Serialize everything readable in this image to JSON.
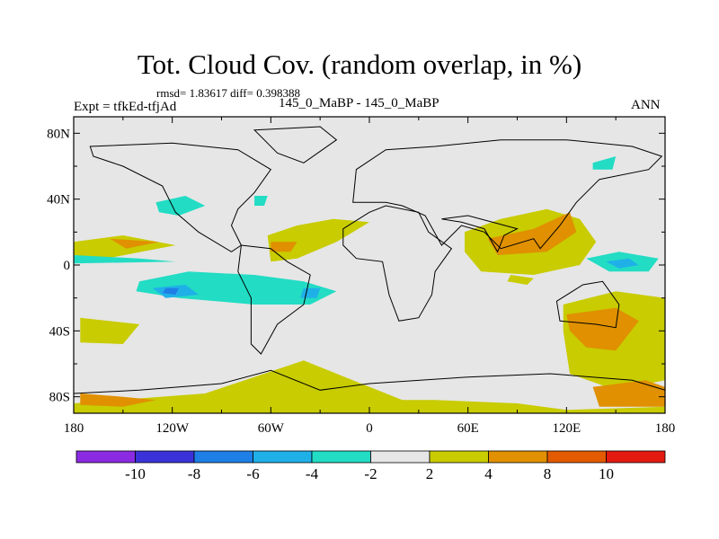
{
  "header": {
    "title": "Tot. Cloud Cov. (random overlap, in %)",
    "stats": "rmsd= 1.83617 diff= 0.398388",
    "expt": "Expt = tfkEd-tfjAd",
    "center_label": "145_0_MaBP - 145_0_MaBP",
    "season": "ANN"
  },
  "chart_data": {
    "type": "heatmap",
    "title": "Tot. Cloud Cov. (random overlap, in %)",
    "xlim": [
      -180,
      180
    ],
    "ylim": [
      -90,
      90
    ],
    "x_ticks": [
      {
        "value": -180,
        "label": "180"
      },
      {
        "value": -120,
        "label": "120W"
      },
      {
        "value": -60,
        "label": "60W"
      },
      {
        "value": 0,
        "label": "0"
      },
      {
        "value": 60,
        "label": "60E"
      },
      {
        "value": 120,
        "label": "120E"
      },
      {
        "value": 180,
        "label": "180"
      }
    ],
    "y_ticks": [
      {
        "value": 80,
        "label": "80N"
      },
      {
        "value": 40,
        "label": "40N"
      },
      {
        "value": 0,
        "label": "0"
      },
      {
        "value": -40,
        "label": "40S"
      },
      {
        "value": -80,
        "label": "80S"
      }
    ],
    "colorbar": {
      "colors": [
        "#8a2be2",
        "#3a32d8",
        "#1e7fe6",
        "#1fb0e8",
        "#22dcc4",
        "#e6e6e6",
        "#c8cc00",
        "#e09000",
        "#e45a00",
        "#e21a10"
      ],
      "labels": [
        "-10",
        "-8",
        "-6",
        "-4",
        "-2",
        "2",
        "4",
        "8",
        "10"
      ]
    },
    "regions": [
      {
        "level": 2,
        "color": "#c8cc00",
        "pts": [
          [
            -180,
            -84
          ],
          [
            -100,
            -78
          ],
          [
            -40,
            -58
          ],
          [
            20,
            -82
          ],
          [
            40,
            -82
          ],
          [
            90,
            -84
          ],
          [
            120,
            -88
          ],
          [
            180,
            -86
          ],
          [
            180,
            -90
          ],
          [
            -180,
            -90
          ]
        ]
      },
      {
        "level": 2,
        "color": "#c8cc00",
        "pts": [
          [
            -176,
            -32
          ],
          [
            -140,
            -36
          ],
          [
            -150,
            -48
          ],
          [
            -176,
            -47
          ]
        ]
      },
      {
        "level": 2,
        "color": "#c8cc00",
        "pts": [
          [
            118,
            -24
          ],
          [
            150,
            -16
          ],
          [
            180,
            -20
          ],
          [
            180,
            -70
          ],
          [
            150,
            -76
          ],
          [
            122,
            -66
          ],
          [
            118,
            -40
          ]
        ]
      },
      {
        "level": 2,
        "color": "#c8cc00",
        "pts": [
          [
            -180,
            14
          ],
          [
            -150,
            18
          ],
          [
            -118,
            12
          ],
          [
            -160,
            4
          ],
          [
            -180,
            6
          ]
        ]
      },
      {
        "level": 2,
        "color": "#c8cc00",
        "pts": [
          [
            -62,
            18
          ],
          [
            -44,
            24
          ],
          [
            -22,
            28
          ],
          [
            0,
            26
          ],
          [
            -20,
            14
          ],
          [
            -44,
            4
          ],
          [
            -60,
            2
          ]
        ]
      },
      {
        "level": 2,
        "color": "#c8cc00",
        "pts": [
          [
            58,
            20
          ],
          [
            80,
            28
          ],
          [
            108,
            34
          ],
          [
            128,
            28
          ],
          [
            138,
            14
          ],
          [
            128,
            0
          ],
          [
            100,
            -6
          ],
          [
            68,
            -4
          ],
          [
            58,
            8
          ]
        ]
      },
      {
        "level": 2,
        "color": "#c8cc00",
        "pts": [
          [
            86,
            -6
          ],
          [
            100,
            -8
          ],
          [
            96,
            -12
          ],
          [
            84,
            -10
          ]
        ]
      },
      {
        "level": 4,
        "color": "#e09000",
        "pts": [
          [
            -158,
            16
          ],
          [
            -128,
            14
          ],
          [
            -148,
            10
          ]
        ]
      },
      {
        "level": 4,
        "color": "#e09000",
        "pts": [
          [
            -60,
            14
          ],
          [
            -44,
            14
          ],
          [
            -48,
            8
          ],
          [
            -60,
            8
          ]
        ]
      },
      {
        "level": 4,
        "color": "#e09000",
        "pts": [
          [
            72,
            16
          ],
          [
            100,
            22
          ],
          [
            122,
            32
          ],
          [
            126,
            20
          ],
          [
            108,
            8
          ],
          [
            78,
            6
          ]
        ]
      },
      {
        "level": 4,
        "color": "#e09000",
        "pts": [
          [
            120,
            -30
          ],
          [
            150,
            -26
          ],
          [
            164,
            -34
          ],
          [
            150,
            -52
          ],
          [
            132,
            -50
          ],
          [
            122,
            -40
          ]
        ]
      },
      {
        "level": 4,
        "color": "#e09000",
        "pts": [
          [
            -176,
            -78
          ],
          [
            -150,
            -80
          ],
          [
            -130,
            -82
          ],
          [
            -150,
            -86
          ],
          [
            -176,
            -85
          ]
        ]
      },
      {
        "level": 4,
        "color": "#e09000",
        "pts": [
          [
            136,
            -74
          ],
          [
            168,
            -70
          ],
          [
            180,
            -74
          ],
          [
            180,
            -86
          ],
          [
            140,
            -86
          ]
        ]
      },
      {
        "level": -2,
        "color": "#22dcc4",
        "pts": [
          [
            -180,
            6
          ],
          [
            -140,
            4
          ],
          [
            -118,
            2
          ],
          [
            -180,
            1
          ]
        ]
      },
      {
        "level": -2,
        "color": "#22dcc4",
        "pts": [
          [
            -140,
            -10
          ],
          [
            -110,
            -4
          ],
          [
            -70,
            -6
          ],
          [
            -40,
            -10
          ],
          [
            -20,
            -16
          ],
          [
            -36,
            -24
          ],
          [
            -70,
            -24
          ],
          [
            -116,
            -20
          ],
          [
            -142,
            -16
          ]
        ]
      },
      {
        "level": -2,
        "color": "#22dcc4",
        "pts": [
          [
            -130,
            38
          ],
          [
            -112,
            42
          ],
          [
            -100,
            36
          ],
          [
            -116,
            30
          ],
          [
            -128,
            32
          ]
        ]
      },
      {
        "level": -2,
        "color": "#22dcc4",
        "pts": [
          [
            -70,
            42
          ],
          [
            -62,
            42
          ],
          [
            -64,
            36
          ],
          [
            -70,
            36
          ]
        ]
      },
      {
        "level": -2,
        "color": "#22dcc4",
        "pts": [
          [
            132,
            4
          ],
          [
            152,
            8
          ],
          [
            176,
            4
          ],
          [
            170,
            -4
          ],
          [
            146,
            -4
          ]
        ]
      },
      {
        "level": -2,
        "color": "#22dcc4",
        "pts": [
          [
            136,
            62
          ],
          [
            150,
            66
          ],
          [
            148,
            58
          ],
          [
            136,
            58
          ]
        ]
      },
      {
        "level": -4,
        "color": "#1fb0e8",
        "pts": [
          [
            -132,
            -14
          ],
          [
            -112,
            -12
          ],
          [
            -104,
            -18
          ],
          [
            -124,
            -20
          ]
        ]
      },
      {
        "level": -4,
        "color": "#1fb0e8",
        "pts": [
          [
            -40,
            -14
          ],
          [
            -30,
            -14
          ],
          [
            -32,
            -20
          ],
          [
            -42,
            -20
          ]
        ]
      },
      {
        "level": -4,
        "color": "#1fb0e8",
        "pts": [
          [
            144,
            2
          ],
          [
            158,
            4
          ],
          [
            164,
            0
          ],
          [
            152,
            -2
          ]
        ]
      },
      {
        "level": -6,
        "color": "#1e7fe6",
        "pts": [
          [
            -124,
            -14
          ],
          [
            -116,
            -14
          ],
          [
            -118,
            -18
          ],
          [
            -126,
            -17
          ]
        ]
      }
    ],
    "continents": [
      {
        "name": "north-america",
        "pts": [
          [
            -170,
            72
          ],
          [
            -120,
            74
          ],
          [
            -80,
            70
          ],
          [
            -60,
            58
          ],
          [
            -70,
            44
          ],
          [
            -80,
            34
          ],
          [
            -84,
            24
          ],
          [
            -78,
            12
          ],
          [
            -84,
            8
          ],
          [
            -104,
            20
          ],
          [
            -118,
            32
          ],
          [
            -126,
            48
          ],
          [
            -150,
            60
          ],
          [
            -168,
            66
          ]
        ]
      },
      {
        "name": "greenland",
        "pts": [
          [
            -70,
            82
          ],
          [
            -30,
            84
          ],
          [
            -20,
            76
          ],
          [
            -40,
            62
          ],
          [
            -56,
            68
          ]
        ]
      },
      {
        "name": "south-america",
        "pts": [
          [
            -78,
            12
          ],
          [
            -60,
            10
          ],
          [
            -50,
            2
          ],
          [
            -36,
            -6
          ],
          [
            -40,
            -24
          ],
          [
            -56,
            -36
          ],
          [
            -66,
            -54
          ],
          [
            -72,
            -48
          ],
          [
            -72,
            -20
          ],
          [
            -80,
            -4
          ]
        ]
      },
      {
        "name": "africa",
        "pts": [
          [
            -16,
            22
          ],
          [
            0,
            32
          ],
          [
            10,
            36
          ],
          [
            30,
            32
          ],
          [
            36,
            20
          ],
          [
            50,
            10
          ],
          [
            40,
            -4
          ],
          [
            38,
            -18
          ],
          [
            30,
            -32
          ],
          [
            18,
            -34
          ],
          [
            12,
            -18
          ],
          [
            8,
            2
          ],
          [
            -8,
            4
          ],
          [
            -16,
            12
          ]
        ]
      },
      {
        "name": "eurasia",
        "pts": [
          [
            -10,
            38
          ],
          [
            -8,
            58
          ],
          [
            10,
            70
          ],
          [
            40,
            72
          ],
          [
            80,
            76
          ],
          [
            120,
            76
          ],
          [
            160,
            72
          ],
          [
            178,
            66
          ],
          [
            170,
            58
          ],
          [
            140,
            52
          ],
          [
            126,
            38
          ],
          [
            116,
            24
          ],
          [
            104,
            10
          ],
          [
            100,
            16
          ],
          [
            80,
            10
          ],
          [
            70,
            20
          ],
          [
            56,
            24
          ],
          [
            44,
            12
          ],
          [
            34,
            30
          ],
          [
            20,
            36
          ],
          [
            10,
            38
          ]
        ]
      },
      {
        "name": "india-arabia",
        "pts": [
          [
            44,
            28
          ],
          [
            56,
            26
          ],
          [
            70,
            22
          ],
          [
            78,
            8
          ],
          [
            82,
            18
          ],
          [
            90,
            22
          ],
          [
            60,
            30
          ]
        ]
      },
      {
        "name": "australia",
        "pts": [
          [
            114,
            -22
          ],
          [
            130,
            -12
          ],
          [
            142,
            -10
          ],
          [
            152,
            -24
          ],
          [
            150,
            -38
          ],
          [
            138,
            -36
          ],
          [
            116,
            -34
          ]
        ]
      },
      {
        "name": "antarctica",
        "pts": [
          [
            -180,
            -78
          ],
          [
            -140,
            -76
          ],
          [
            -90,
            -72
          ],
          [
            -60,
            -64
          ],
          [
            -30,
            -76
          ],
          [
            0,
            -72
          ],
          [
            60,
            -68
          ],
          [
            110,
            -66
          ],
          [
            160,
            -70
          ],
          [
            180,
            -76
          ],
          [
            180,
            -90
          ],
          [
            -180,
            -90
          ]
        ]
      }
    ]
  }
}
